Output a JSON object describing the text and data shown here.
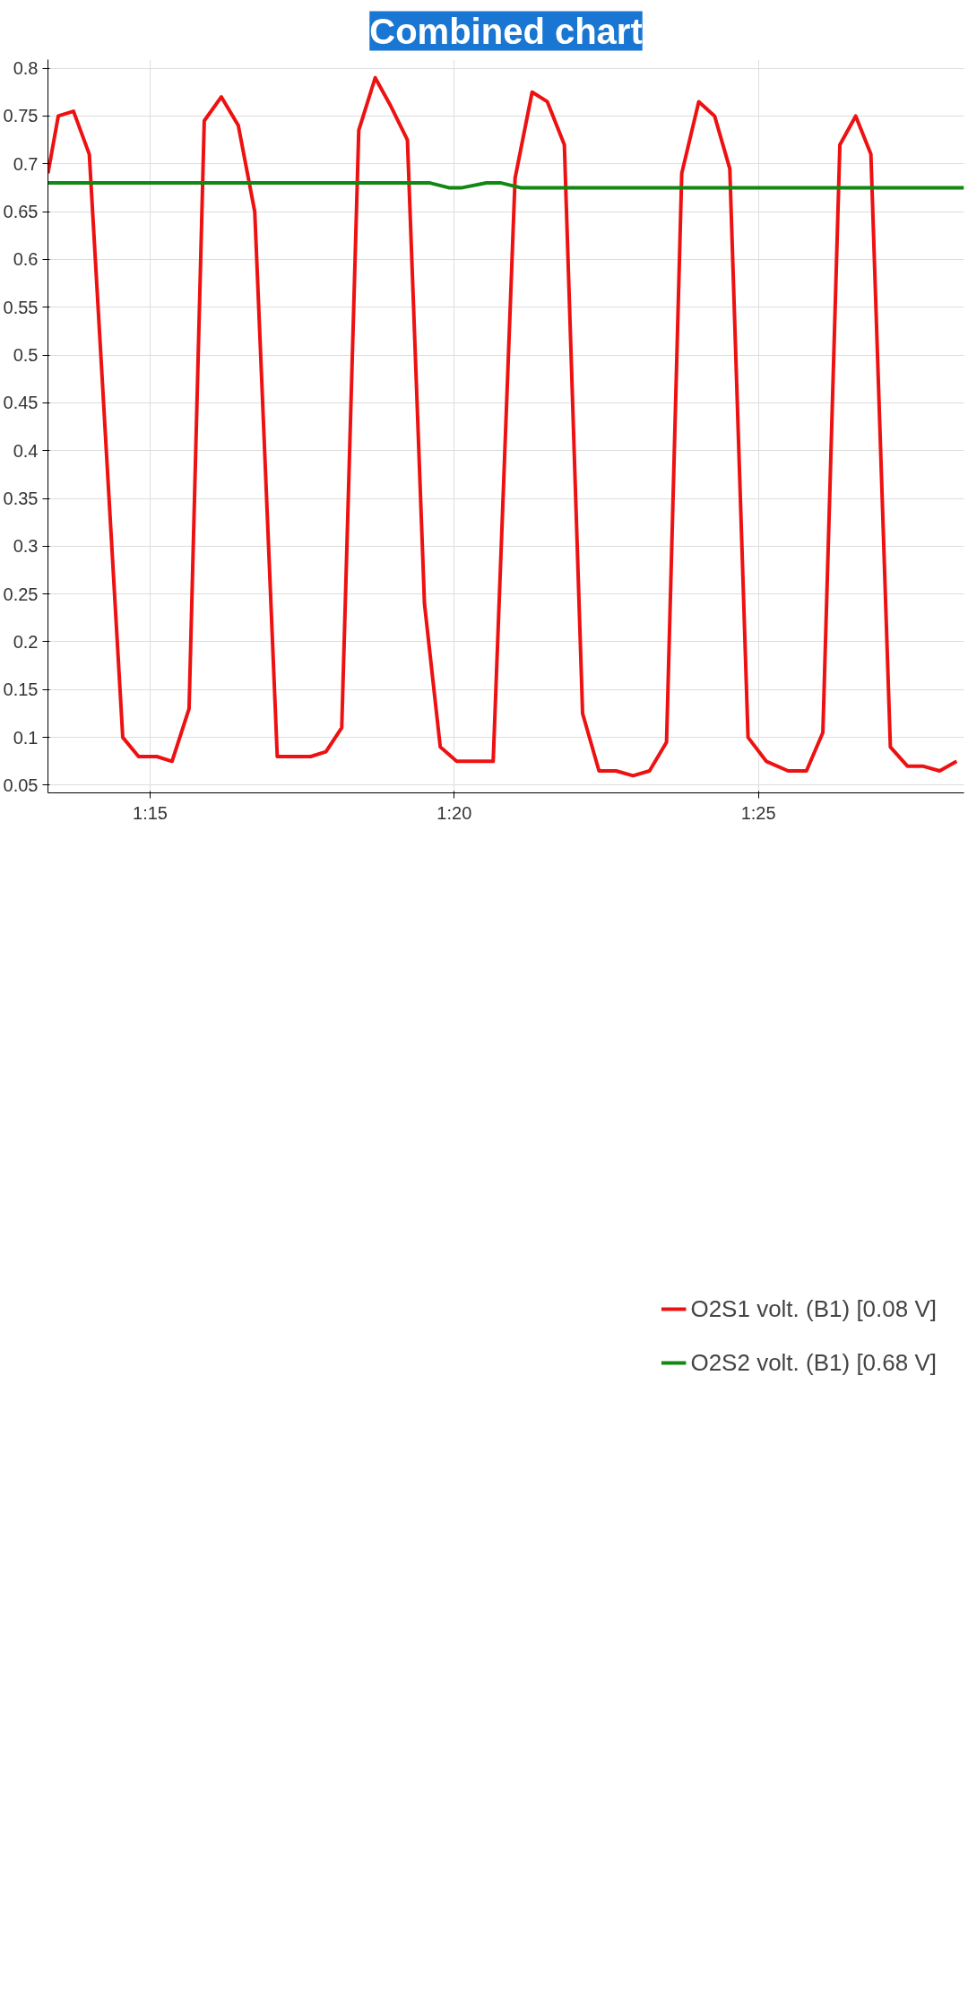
{
  "chart_data": {
    "type": "line",
    "title": "Combined chart",
    "xlim": [
      73.32,
      88.38
    ],
    "xticks": [
      {
        "value": 75,
        "label": "1:15"
      },
      {
        "value": 80,
        "label": "1:20"
      },
      {
        "value": 85,
        "label": "1:25"
      }
    ],
    "ylim": [
      0.042,
      0.809
    ],
    "yticks": [
      0.05,
      0.1,
      0.15,
      0.2,
      0.25,
      0.3,
      0.35,
      0.4,
      0.45,
      0.5,
      0.55,
      0.6,
      0.65,
      0.7,
      0.75,
      0.8
    ],
    "grid": true,
    "legend": "bottom",
    "line_style": "solid",
    "series": [
      {
        "name": "O2S1 volt. (B1) [0.08 V]",
        "color": "#ee1111",
        "x": [
          73.32,
          73.49,
          73.74,
          74.0,
          74.55,
          74.81,
          75.11,
          75.36,
          75.64,
          75.89,
          76.17,
          76.45,
          76.72,
          77.09,
          77.64,
          77.89,
          78.15,
          78.43,
          78.7,
          78.96,
          79.23,
          79.51,
          79.77,
          80.04,
          80.64,
          81.0,
          81.28,
          81.53,
          81.81,
          82.11,
          82.38,
          82.66,
          82.94,
          83.21,
          83.49,
          83.74,
          84.02,
          84.28,
          84.53,
          84.83,
          85.13,
          85.49,
          85.79,
          86.06,
          86.34,
          86.6,
          86.85,
          87.17,
          87.45,
          87.7,
          87.98,
          88.26
        ],
        "values": [
          0.69,
          0.75,
          0.755,
          0.71,
          0.1,
          0.08,
          0.08,
          0.075,
          0.13,
          0.745,
          0.77,
          0.74,
          0.65,
          0.08,
          0.08,
          0.085,
          0.11,
          0.735,
          0.79,
          0.76,
          0.725,
          0.24,
          0.09,
          0.075,
          0.075,
          0.685,
          0.775,
          0.765,
          0.72,
          0.125,
          0.065,
          0.065,
          0.06,
          0.065,
          0.095,
          0.69,
          0.765,
          0.75,
          0.695,
          0.1,
          0.075,
          0.065,
          0.065,
          0.105,
          0.72,
          0.75,
          0.71,
          0.09,
          0.07,
          0.07,
          0.065,
          0.075
        ]
      },
      {
        "name": "O2S2 volt. (B1) [0.68 V]",
        "color": "#118811",
        "x": [
          73.32,
          79.6,
          79.91,
          80.13,
          80.53,
          80.77,
          81.09,
          88.38
        ],
        "values": [
          0.68,
          0.68,
          0.675,
          0.675,
          0.68,
          0.68,
          0.675,
          0.675
        ]
      }
    ]
  }
}
